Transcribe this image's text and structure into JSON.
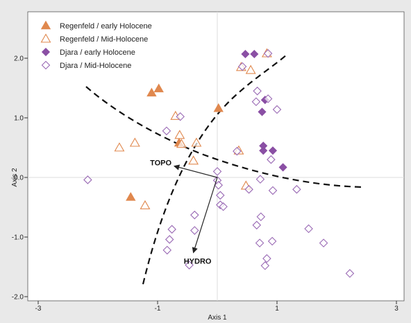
{
  "chart_data": {
    "type": "scatter",
    "title": "",
    "xlabel": "Axis 1",
    "ylabel": "Axis 2",
    "xlim": [
      -3,
      3
    ],
    "ylim": [
      -2.0,
      2.5
    ],
    "x_ticks": [
      -3,
      -1,
      1,
      3
    ],
    "x_tick_labels": [
      "-3",
      "-1",
      "1",
      "3"
    ],
    "y_ticks": [
      -2.0,
      -1.0,
      0.0,
      1.0,
      2.0
    ],
    "y_tick_labels": [
      "-2.0",
      "-1.0",
      "0.0",
      "1.0",
      "2.0"
    ],
    "zero_lines": true,
    "legend_position": "top-left",
    "colors": {
      "regenfeld": "#e0884e",
      "djara": "#8a4fa4"
    },
    "series": [
      {
        "name": "Regenfeld / early Holocene",
        "marker": "triangle-filled",
        "points": [
          [
            -1.1,
            1.42
          ],
          [
            -0.98,
            1.49
          ],
          [
            0.02,
            1.16
          ],
          [
            -0.64,
            0.58
          ],
          [
            -1.45,
            -0.33
          ]
        ]
      },
      {
        "name": "Regenfeld / Mid-Holocene",
        "marker": "triangle-open",
        "points": [
          [
            0.4,
            1.85
          ],
          [
            0.56,
            1.8
          ],
          [
            -0.7,
            1.03
          ],
          [
            -0.63,
            0.71
          ],
          [
            -1.38,
            0.58
          ],
          [
            -1.64,
            0.5
          ],
          [
            -0.35,
            0.58
          ],
          [
            -0.6,
            0.56
          ],
          [
            -0.4,
            0.28
          ],
          [
            -1.21,
            -0.47
          ],
          [
            0.48,
            -0.14
          ],
          [
            0.83,
            2.08
          ],
          [
            0.36,
            0.45
          ]
        ]
      },
      {
        "name": "Djara / early Holocene",
        "marker": "diamond-filled",
        "points": [
          [
            0.47,
            2.07
          ],
          [
            0.62,
            2.07
          ],
          [
            0.8,
            1.3
          ],
          [
            0.75,
            1.1
          ],
          [
            0.77,
            0.53
          ],
          [
            0.77,
            0.45
          ],
          [
            0.93,
            0.45
          ],
          [
            1.1,
            0.17
          ]
        ]
      },
      {
        "name": "Djara / Mid-Holocene",
        "marker": "diamond-open",
        "points": [
          [
            0.42,
            1.86
          ],
          [
            0.85,
            2.08
          ],
          [
            0.67,
            1.45
          ],
          [
            0.65,
            1.27
          ],
          [
            0.85,
            1.32
          ],
          [
            1.0,
            1.14
          ],
          [
            -0.62,
            1.02
          ],
          [
            -0.85,
            0.78
          ],
          [
            0.33,
            0.44
          ],
          [
            0.9,
            0.3
          ],
          [
            -2.17,
            -0.04
          ],
          [
            0.0,
            0.1
          ],
          [
            0.0,
            -0.05
          ],
          [
            0.02,
            -0.13
          ],
          [
            0.05,
            -0.3
          ],
          [
            0.05,
            -0.46
          ],
          [
            0.1,
            -0.49
          ],
          [
            0.53,
            -0.2
          ],
          [
            0.72,
            -0.03
          ],
          [
            0.93,
            -0.22
          ],
          [
            1.33,
            -0.2
          ],
          [
            0.73,
            -0.66
          ],
          [
            0.66,
            -0.8
          ],
          [
            -0.38,
            -0.63
          ],
          [
            -0.38,
            -0.89
          ],
          [
            -0.76,
            -0.87
          ],
          [
            -0.8,
            -1.04
          ],
          [
            -0.84,
            -1.22
          ],
          [
            -0.47,
            -1.47
          ],
          [
            0.71,
            -1.1
          ],
          [
            0.92,
            -1.07
          ],
          [
            0.83,
            -1.36
          ],
          [
            0.8,
            -1.48
          ],
          [
            1.53,
            -0.86
          ],
          [
            1.78,
            -1.1
          ],
          [
            2.22,
            -1.61
          ]
        ]
      }
    ],
    "vectors": [
      {
        "label": "TOPO",
        "from": [
          0,
          0
        ],
        "to": [
          -0.72,
          0.19
        ]
      },
      {
        "label": "HYDRO",
        "from": [
          0,
          0
        ],
        "to": [
          -0.4,
          -1.26
        ]
      }
    ]
  }
}
